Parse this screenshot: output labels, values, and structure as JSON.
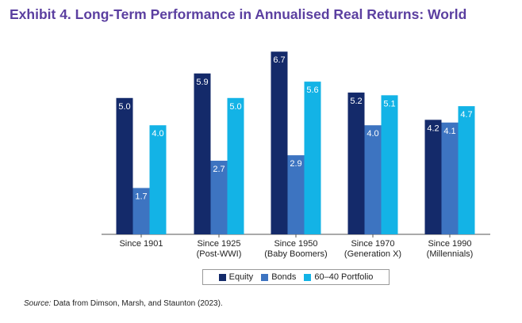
{
  "title": "Exhibit 4. Long-Term Performance in Annualised Real Returns: World",
  "source": {
    "label": "Source:",
    "text": " Data from Dimson, Marsh, and Staunton (2023)."
  },
  "chart_data": {
    "type": "bar",
    "title": "Exhibit 4. Long-Term Performance in Annualised Real Returns: World",
    "xlabel": "",
    "ylabel": "",
    "ylim": [
      0,
      7.2
    ],
    "categories": [
      [
        "Since 1901"
      ],
      [
        "Since 1925",
        "(Post-WWI)"
      ],
      [
        "Since 1950",
        "(Baby Boomers)"
      ],
      [
        "Since 1970",
        "(Generation X)"
      ],
      [
        "Since 1990",
        "(Millennials)"
      ]
    ],
    "series": [
      {
        "name": "Equity",
        "color": "#142a6a",
        "values": [
          5.0,
          5.9,
          6.7,
          5.2,
          4.2
        ],
        "labels": [
          "5.0",
          "5.9",
          "6.7",
          "5.2",
          "4.2"
        ]
      },
      {
        "name": "Bonds",
        "color": "#3d74c1",
        "values": [
          1.7,
          2.7,
          2.9,
          4.0,
          4.1
        ],
        "labels": [
          "1.7",
          "2.7",
          "2.9",
          "4.0",
          "4.1"
        ]
      },
      {
        "name": "60–40 Portfolio",
        "color": "#13b3e6",
        "values": [
          4.0,
          5.0,
          5.6,
          5.1,
          4.7
        ],
        "labels": [
          "4.0",
          "5.0",
          "5.6",
          "5.1",
          "4.7"
        ]
      }
    ],
    "legend": "bottom-center"
  }
}
